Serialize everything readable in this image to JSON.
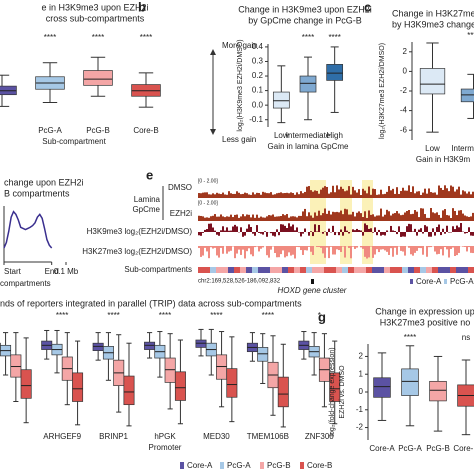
{
  "chart_data": [
    {
      "type": "box",
      "title": [
        "e in H3K9me3 upon EZH2i",
        "cross sub-compartments"
      ],
      "xlabel": "Sub-compartment",
      "categories": [
        null,
        "PcG-A",
        "PcG-B",
        "Core-B"
      ],
      "colors": [
        "#5b52a3",
        "#a6c8e6",
        "#f4a6a6",
        "#d9534f"
      ],
      "boxes": [
        [
          2,
          3.5,
          4,
          4.6,
          6
        ],
        [
          2.5,
          4.2,
          5,
          5.8,
          7.6
        ],
        [
          3.3,
          4.7,
          5.5,
          6.6,
          8.3
        ],
        [
          1.9,
          3.3,
          4,
          4.8,
          6.3
        ]
      ],
      "ylim": [
        0,
        10
      ],
      "significance": [
        null,
        "****",
        "****",
        "****"
      ],
      "annotations": [
        "More gain",
        "Less gain"
      ]
    },
    {
      "type": "box",
      "label": "b",
      "title": [
        "Change in H3K9me3 upon EZH2i",
        "by GpCme change in PcG-B"
      ],
      "xlabel": "Gain in lamina GpCme",
      "ylabel": [
        "log₂(H3K9me3 EZH2i/DMSO)"
      ],
      "categories": [
        "Low",
        "Intermediate",
        "High"
      ],
      "colors": [
        "#dce9f5",
        "#7fa9d1",
        "#2f6ea8"
      ],
      "boxes": [
        [
          -0.12,
          -0.02,
          0.03,
          0.09,
          0.27
        ],
        [
          -0.1,
          0.09,
          0.15,
          0.2,
          0.33
        ],
        [
          -0.05,
          0.17,
          0.22,
          0.28,
          0.4
        ]
      ],
      "ylim": [
        -0.15,
        0.42
      ],
      "yticks": [
        {
          "value": -0.1,
          "label": "-0.1"
        },
        {
          "value": 0,
          "label": "0.0"
        },
        0.1,
        0.2,
        0.3,
        0.4
      ],
      "significance": [
        null,
        "****",
        "****"
      ]
    },
    {
      "type": "box",
      "label": "c",
      "title": [
        "Change in H3K27me3 change",
        "by H3K9me3 change"
      ],
      "xlabel": "Gain in H3K9m",
      "ylabel": [
        "log₂(H3K27me3 EZH2i/DMSO)"
      ],
      "categories": [
        "Low",
        "Intermediate"
      ],
      "colors": [
        "#dce9f5",
        "#7fa9d1"
      ],
      "boxes": [
        [
          -6.2,
          -2.3,
          -1.3,
          0.3,
          2.9
        ],
        [
          -4.8,
          -3.1,
          -2.4,
          -1.8,
          -0.3
        ]
      ],
      "ylim": [
        -7,
        3
      ],
      "yticks": [
        2,
        0,
        -2,
        -4,
        -6
      ],
      "significance": [
        null,
        "****"
      ]
    },
    {
      "type": "line",
      "title": [
        "change upon EZH2i",
        "B compartments"
      ],
      "xlabel": "compartments",
      "color": "#3a2f8f",
      "x": [
        0,
        0.05,
        0.1,
        0.15,
        0.2,
        0.25,
        0.3,
        0.35,
        0.4,
        0.45,
        0.5,
        0.55,
        0.6,
        0.65,
        0.7,
        0.75,
        0.8,
        0.85,
        0.9,
        0.95,
        1
      ],
      "values": [
        0.25,
        0.35,
        0.55,
        0.8,
        0.9,
        0.85,
        0.75,
        0.62,
        0.6,
        0.58,
        0.6,
        0.62,
        0.65,
        0.7,
        0.8,
        0.85,
        0.78,
        0.6,
        0.4,
        0.3,
        0.25
      ],
      "xlim": [
        0,
        1.3
      ],
      "ylim": [
        0,
        1
      ],
      "xticks": [
        {
          "value": 0,
          "label": "Start"
        },
        {
          "value": 1,
          "label": "End"
        },
        {
          "value": 1.3,
          "label": "0.1 Mb"
        }
      ]
    },
    {
      "type": "box",
      "title": [
        "ands of reporters integrated in parallel (TRIP) data across sub-compartments"
      ],
      "xlabel": "Promoter",
      "categories": [
        null,
        "ARHGEF9",
        "BRINP1",
        "hPGK",
        "MED30",
        "TMEM106B",
        "ZNF300"
      ],
      "ylim": [
        0,
        10
      ],
      "significance": [
        null,
        "****",
        "****",
        "****",
        "****",
        "****",
        "*"
      ],
      "series": [
        {
          "name": "Core-A",
          "color": "#5b52a3",
          "boxes": [
            [
              6,
              7.2,
              7.6,
              8,
              9
            ],
            [
              6.5,
              7.4,
              7.8,
              8.2,
              9.2
            ],
            [
              6.4,
              7.3,
              7.7,
              8,
              9
            ],
            [
              6.6,
              7.4,
              7.8,
              8.1,
              9
            ],
            [
              6.8,
              7.6,
              8,
              8.3,
              9.3
            ],
            [
              6.3,
              7.2,
              7.6,
              8,
              9
            ],
            [
              6.5,
              7.4,
              7.8,
              8.2,
              9.1
            ]
          ]
        },
        {
          "name": "PcG-A",
          "color": "#a6c8e6",
          "boxes": [
            [
              5,
              6.8,
              7.3,
              7.8,
              9
            ],
            [
              5.2,
              6.9,
              7.4,
              7.9,
              9.2
            ],
            [
              4.5,
              6.5,
              7.1,
              7.7,
              9
            ],
            [
              4.8,
              6.6,
              7.2,
              7.8,
              9.1
            ],
            [
              5,
              6.8,
              7.4,
              8,
              9.3
            ],
            [
              4.2,
              6.3,
              7,
              7.6,
              8.9
            ],
            [
              5,
              6.7,
              7.2,
              7.7,
              9
            ]
          ]
        },
        {
          "name": "PcG-B",
          "color": "#f4a6a6",
          "boxes": [
            [
              2.5,
              4.8,
              5.8,
              6.9,
              9
            ],
            [
              2.2,
              4.5,
              5.6,
              6.7,
              9
            ],
            [
              1.5,
              4,
              5.2,
              6.4,
              8.8
            ],
            [
              1.8,
              4.3,
              5.5,
              6.6,
              8.9
            ],
            [
              2,
              4.6,
              5.8,
              6.9,
              9.1
            ],
            [
              1.2,
              3.8,
              5,
              6.2,
              8.7
            ],
            [
              2,
              4.4,
              5.5,
              6.6,
              8.9
            ]
          ]
        },
        {
          "name": "Core-B",
          "color": "#d9534f",
          "boxes": [
            [
              0.5,
              2.8,
              4,
              5.5,
              8.5
            ],
            [
              0.3,
              2.5,
              3.7,
              5.2,
              8.2
            ],
            [
              0.2,
              2.2,
              3.4,
              4.9,
              8
            ],
            [
              0.4,
              2.6,
              3.8,
              5.3,
              8.3
            ],
            [
              0.6,
              2.9,
              4.1,
              5.6,
              8.6
            ],
            [
              0.1,
              2,
              3.2,
              4.8,
              7.9
            ],
            [
              0.4,
              2.5,
              3.7,
              5.2,
              8.2
            ]
          ]
        }
      ]
    },
    {
      "type": "box",
      "label": "g",
      "title": [
        "Change in expression up",
        "H3K27me3 positive no"
      ],
      "ylabel": [
        "log₂(fold-change expression)",
        "EZH2i vs. DMSO"
      ],
      "categories": [
        "Core-A",
        "PcG-A",
        "PcG-B",
        "Core-B"
      ],
      "colors": [
        "#5b52a3",
        "#a6c8e6",
        "#f4a6a6",
        "#d9534f"
      ],
      "boxes": [
        [
          -1.6,
          -0.3,
          0.3,
          0.8,
          2.2
        ],
        [
          -1.9,
          -0.2,
          0.6,
          1.3,
          2.6
        ],
        [
          -2.2,
          -0.5,
          0.1,
          0.6,
          2.0
        ],
        [
          -2.4,
          -0.8,
          -0.2,
          0.4,
          1.8
        ]
      ],
      "ylim": [
        -2.7,
        2.7
      ],
      "yticks": [
        2,
        1,
        0,
        -1,
        -2
      ],
      "significance": [
        null,
        "****",
        null,
        "ns"
      ]
    }
  ],
  "browser": {
    "label": "e",
    "tracks": [
      "Lamina",
      "GpCme",
      "DMSO",
      "EZH2i",
      "H3K9me3 log₂(EZH2i/DMSO)",
      "H3K27me3 log₂(EZH2i/DMSO)",
      "Sub-compartments"
    ],
    "ranges": [
      "[0 - 2.00]",
      "[0 - 2.00]"
    ],
    "region": "chr2:169,528,526-186,092,832",
    "gene": "HOXD gene cluster",
    "legend": [
      "Core-A",
      "PcG-A"
    ]
  }
}
